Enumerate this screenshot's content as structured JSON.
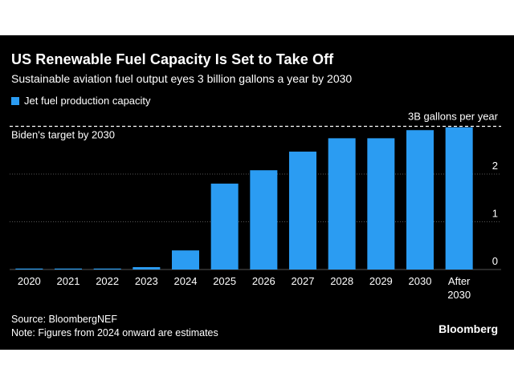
{
  "header": {
    "title": "US Renewable Fuel Capacity Is Set to Take Off",
    "subtitle": "Sustainable aviation fuel output eyes 3 billion gallons a year by 2030"
  },
  "legend": {
    "label": "Jet fuel production capacity",
    "color": "#2b9cf2"
  },
  "annotations": {
    "target_label": "Biden's target by 2030",
    "target_value_label": "3B gallons per year"
  },
  "footer": {
    "source": "Source: BloombergNEF",
    "note": "Note: Figures from 2024 onward are estimates"
  },
  "brand": "Bloomberg",
  "colors": {
    "bar": "#2b9cf2",
    "background": "#000000",
    "text": "#ffffff",
    "grid": "#555555"
  },
  "chart_data": {
    "type": "bar",
    "title": "US Renewable Fuel Capacity Is Set to Take Off",
    "subtitle": "Sustainable aviation fuel output eyes 3 billion gallons a year by 2030",
    "unit": "billion gallons per year",
    "categories": [
      "2020",
      "2021",
      "2022",
      "2023",
      "2024",
      "2025",
      "2026",
      "2027",
      "2028",
      "2029",
      "2030",
      "After 2030"
    ],
    "category_lines": [
      [
        "2020"
      ],
      [
        "2021"
      ],
      [
        "2022"
      ],
      [
        "2023"
      ],
      [
        "2024"
      ],
      [
        "2025"
      ],
      [
        "2026"
      ],
      [
        "2027"
      ],
      [
        "2028"
      ],
      [
        "2029"
      ],
      [
        "2030"
      ],
      [
        "After",
        "2030"
      ]
    ],
    "series": [
      {
        "name": "Jet fuel production capacity",
        "values": [
          0.005,
          0.005,
          0.02,
          0.05,
          0.4,
          1.8,
          2.08,
          2.47,
          2.75,
          2.75,
          2.92,
          2.98
        ]
      }
    ],
    "ylim": [
      0,
      3
    ],
    "yticks": [
      0,
      1,
      2
    ],
    "ytick_labels": [
      "0",
      "1",
      "2"
    ],
    "reference_line": {
      "value": 3,
      "style": "dashed",
      "label": "Biden's target by 2030",
      "value_label": "3B gallons per year"
    },
    "legend_position": "top-left",
    "grid": "horizontal"
  }
}
